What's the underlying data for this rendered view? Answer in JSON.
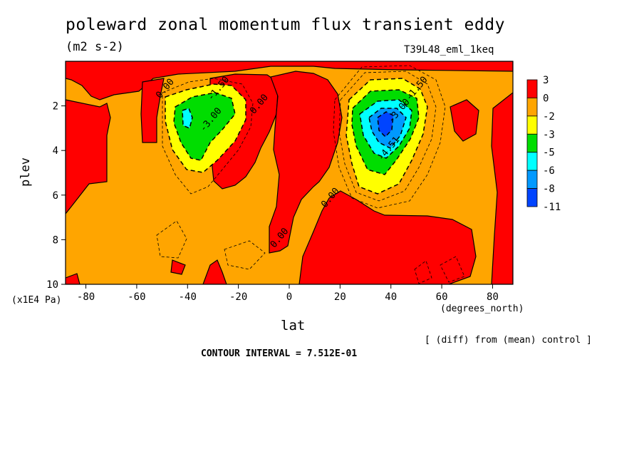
{
  "chart_data": {
    "type": "heatmap",
    "title": "poleward zonal momentum flux transient eddy",
    "units": "(m2 s-2)",
    "run_label": "T39L48_eml_1keq",
    "xlabel": "lat",
    "xunit": "(degrees_north)",
    "ylabel": "plev",
    "yunit": "(x1E4 Pa)",
    "xlim": [
      -88,
      88
    ],
    "ylim": [
      10,
      0
    ],
    "x_ticks": [
      -80,
      -60,
      -40,
      -20,
      0,
      20,
      40,
      60,
      80
    ],
    "y_ticks": [
      2,
      4,
      6,
      8,
      10
    ],
    "legend_levels": [
      "3",
      "0",
      "-2",
      "-3",
      "-5",
      "-6",
      "-8",
      "-11"
    ],
    "legend_colors": [
      "#ff0000",
      "#ffa500",
      "#ffff00",
      "#00dd00",
      "#00ffff",
      "#0099ff",
      "#0044ff"
    ],
    "contour_labels": [
      {
        "text": "0.00",
        "x": -48,
        "y": 1.3
      },
      {
        "text": "-1.50",
        "x": -27,
        "y": 1.3
      },
      {
        "text": "-3.00",
        "x": -30,
        "y": 2.7
      },
      {
        "text": "0.00",
        "x": -11,
        "y": 2.0
      },
      {
        "text": "-1.50",
        "x": 51,
        "y": 1.3
      },
      {
        "text": "-3.00",
        "x": 44,
        "y": 2.3
      },
      {
        "text": "-4.51",
        "x": 40,
        "y": 4.0
      },
      {
        "text": "0.00",
        "x": 17,
        "y": 6.2
      },
      {
        "text": "0.00",
        "x": -3,
        "y": 8.0
      }
    ],
    "footer_note": "[ (diff) from (mean) control ]",
    "contour_interval": "CONTOUR INTERVAL = 7.512E-01"
  }
}
